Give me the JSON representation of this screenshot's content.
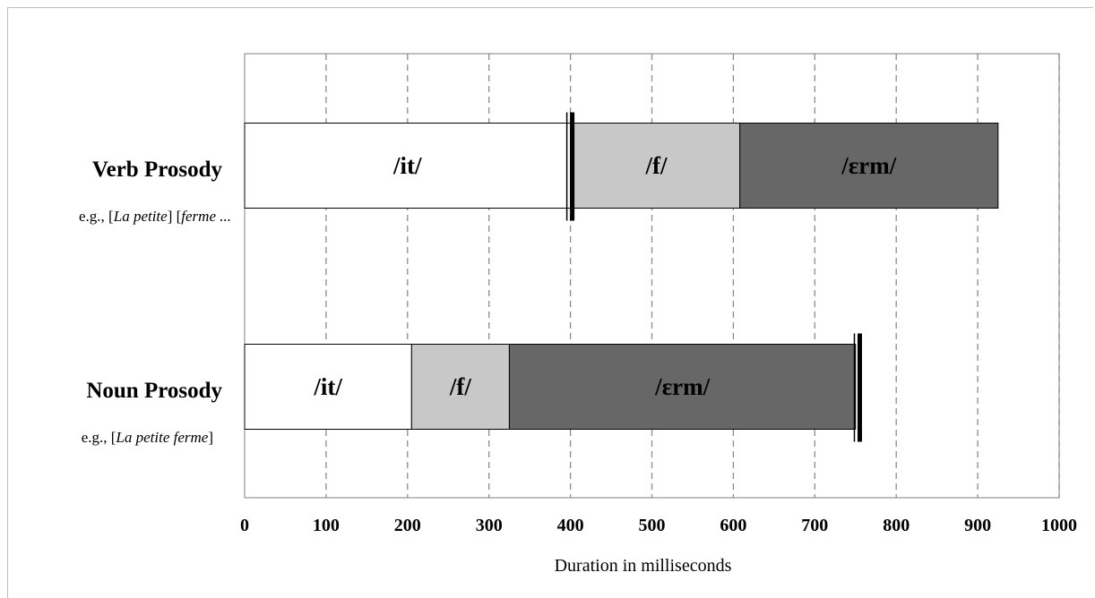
{
  "chart_data": {
    "type": "bar",
    "orientation": "horizontal",
    "stacked": true,
    "xlabel": "Duration in milliseconds",
    "xlim": [
      0,
      1000
    ],
    "xticks": [
      0,
      100,
      200,
      300,
      400,
      500,
      600,
      700,
      800,
      900,
      1000
    ],
    "grid": "vertical dashed",
    "categories": [
      {
        "title": "Verb Prosody",
        "example_prefix": "e.g., [",
        "example_part1": "La petite",
        "example_mid": "] [",
        "example_part2": "ferme ...",
        "example_suffix": "",
        "segments": [
          {
            "label": "/it/",
            "start": 0,
            "end": 400,
            "color": "#ffffff"
          },
          {
            "label": "/f/",
            "start": 403,
            "end": 608,
            "color": "#c8c8c8"
          },
          {
            "label": "/ɛrm/",
            "start": 608,
            "end": 925,
            "color": "#676767"
          }
        ],
        "boundary": 400
      },
      {
        "title": "Noun Prosody",
        "example_prefix": "e.g., [",
        "example_part1": "La petite ferme",
        "example_mid": "",
        "example_part2": "",
        "example_suffix": "]",
        "segments": [
          {
            "label": "/it/",
            "start": 0,
            "end": 205,
            "color": "#ffffff"
          },
          {
            "label": "/f/",
            "start": 205,
            "end": 325,
            "color": "#c8c8c8"
          },
          {
            "label": "/ɛrm/",
            "start": 325,
            "end": 750,
            "color": "#676767"
          }
        ],
        "boundary": 753
      }
    ]
  }
}
